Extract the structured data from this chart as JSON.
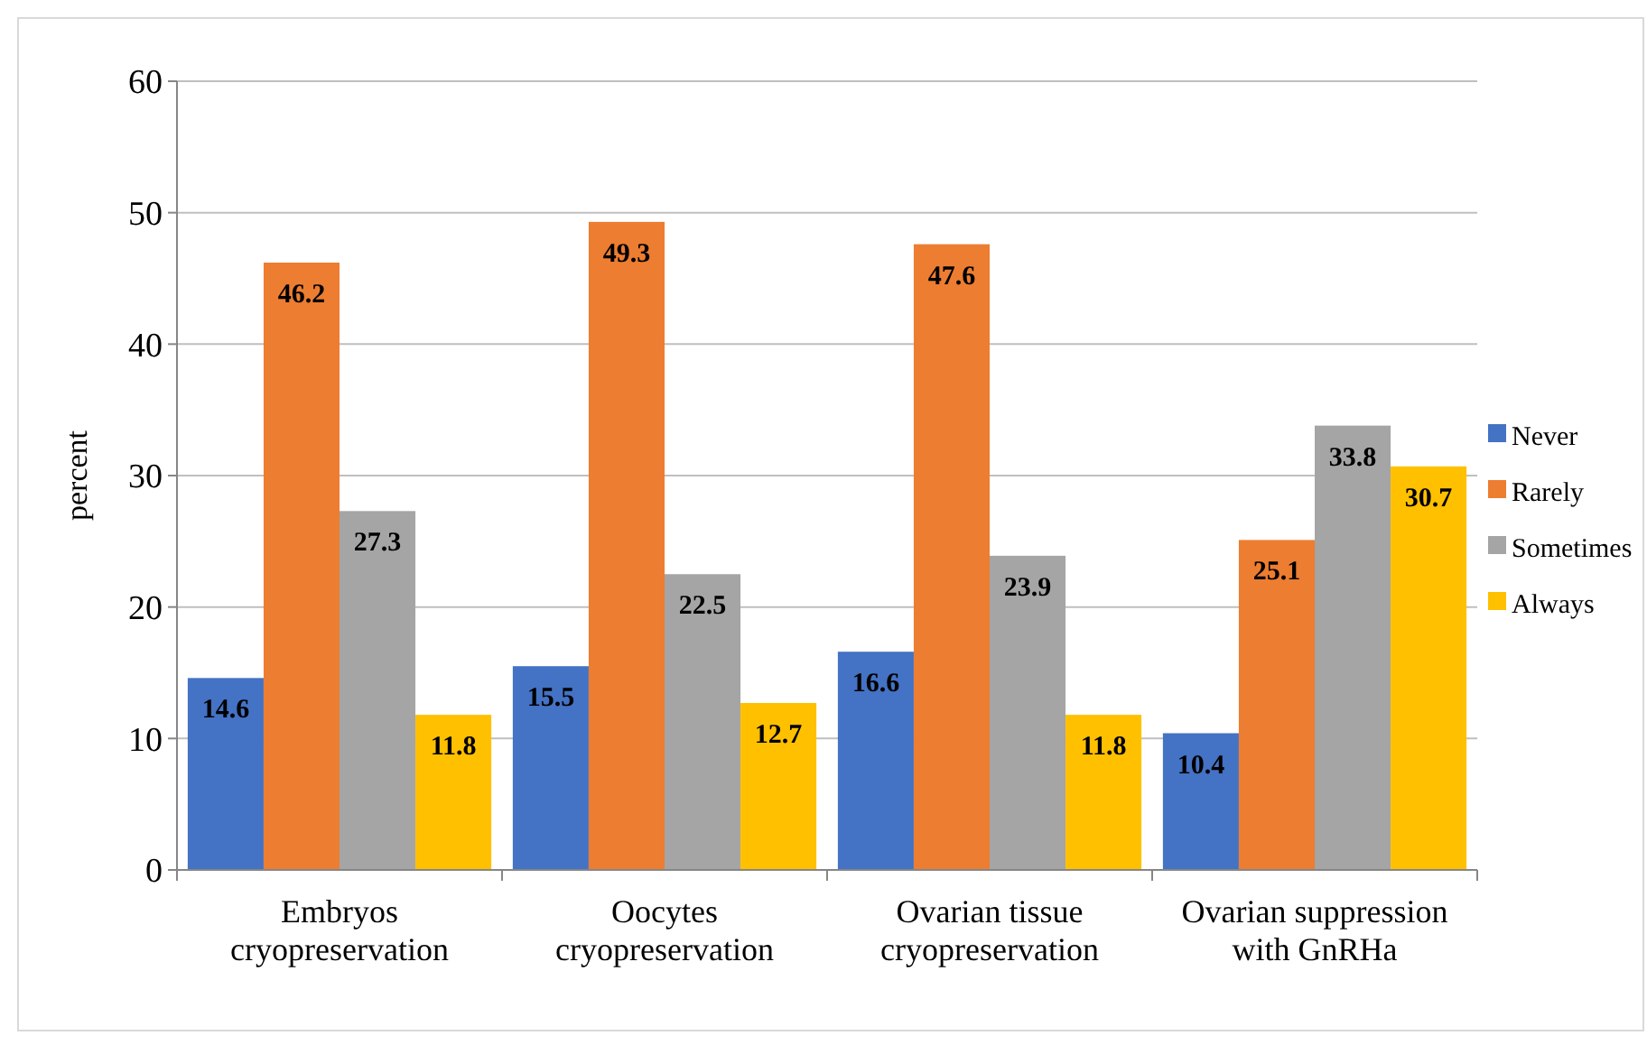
{
  "chart_data": {
    "type": "bar",
    "ylabel": "percent",
    "categories": [
      "Embryos cryopreservation",
      "Oocytes cryopreservation",
      "Ovarian tissue cryopreservation",
      "Ovarian suppression with GnRHa"
    ],
    "series": [
      {
        "name": "Never",
        "color": "#4472c4",
        "values": [
          14.6,
          15.5,
          16.6,
          10.4
        ]
      },
      {
        "name": "Rarely",
        "color": "#ed7d31",
        "values": [
          46.2,
          49.3,
          47.6,
          25.1
        ]
      },
      {
        "name": "Sometimes",
        "color": "#a5a5a5",
        "values": [
          27.3,
          22.5,
          23.9,
          33.8
        ]
      },
      {
        "name": "Always",
        "color": "#ffc000",
        "values": [
          11.8,
          12.7,
          11.8,
          30.7
        ]
      }
    ],
    "ylim": [
      0,
      60
    ],
    "yticks": [
      0,
      10,
      20,
      30,
      40,
      50,
      60
    ],
    "grid": "y",
    "legend": "right",
    "data_labels": true
  }
}
